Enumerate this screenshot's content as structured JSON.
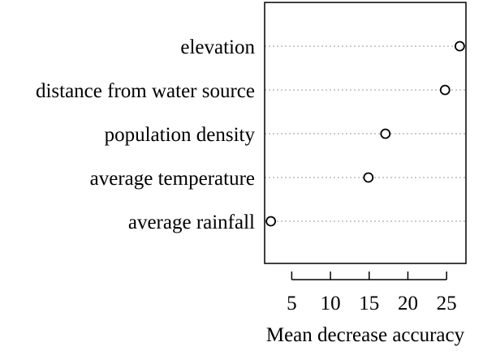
{
  "chart_data": {
    "type": "scatter",
    "subtype": "dotchart",
    "title": "",
    "xlabel": "Mean decrease accuracy",
    "ylabel": "",
    "xlim": [
      1.5,
      27.5
    ],
    "x_ticks": [
      5,
      10,
      15,
      20,
      25
    ],
    "grid": "dotted horizontal guide lines",
    "categories": [
      "elevation",
      "distance from water source",
      "population density",
      "average temperature",
      "average rainfall"
    ],
    "values": [
      26.7,
      24.8,
      17.1,
      14.9,
      2.3
    ]
  }
}
